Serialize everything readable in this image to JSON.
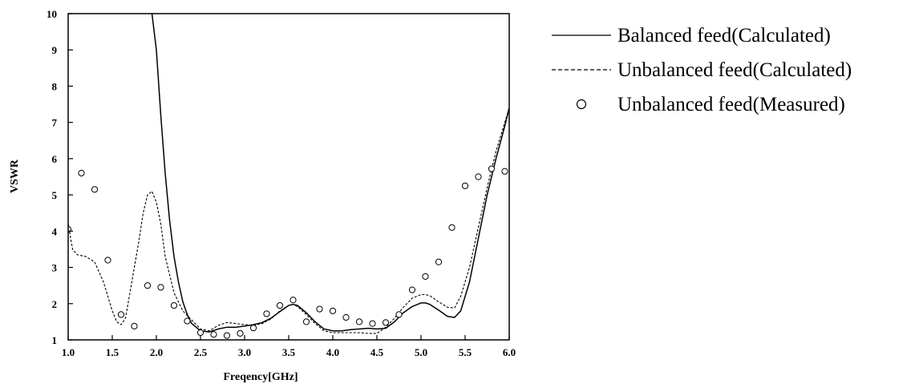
{
  "chart_data": {
    "type": "line",
    "title": "",
    "xlabel": "Freqency[GHz]",
    "ylabel": "VSWR",
    "xlim": [
      1.0,
      6.0
    ],
    "ylim": [
      1,
      10
    ],
    "x_ticks": [
      "1.0",
      "1.5",
      "2.0",
      "2.5",
      "3.0",
      "3.5",
      "4.0",
      "4.5",
      "5.0",
      "5.5",
      "6.0"
    ],
    "y_ticks": [
      "1",
      "2",
      "3",
      "4",
      "5",
      "6",
      "7",
      "8",
      "9",
      "10"
    ],
    "grid": false,
    "legend_position": "right",
    "series": [
      {
        "name": "Balanced feed(Calculated)",
        "style": "solid",
        "color": "#000000",
        "points": [
          [
            1.95,
            10.0
          ],
          [
            2.0,
            9.0
          ],
          [
            2.05,
            7.2
          ],
          [
            2.1,
            5.6
          ],
          [
            2.15,
            4.3
          ],
          [
            2.2,
            3.3
          ],
          [
            2.25,
            2.6
          ],
          [
            2.3,
            2.05
          ],
          [
            2.35,
            1.7
          ],
          [
            2.4,
            1.45
          ],
          [
            2.5,
            1.25
          ],
          [
            2.6,
            1.22
          ],
          [
            2.7,
            1.3
          ],
          [
            2.8,
            1.35
          ],
          [
            2.9,
            1.35
          ],
          [
            3.0,
            1.38
          ],
          [
            3.1,
            1.42
          ],
          [
            3.2,
            1.48
          ],
          [
            3.3,
            1.6
          ],
          [
            3.4,
            1.78
          ],
          [
            3.5,
            1.95
          ],
          [
            3.55,
            1.98
          ],
          [
            3.6,
            1.95
          ],
          [
            3.7,
            1.75
          ],
          [
            3.8,
            1.5
          ],
          [
            3.9,
            1.3
          ],
          [
            4.0,
            1.25
          ],
          [
            4.1,
            1.25
          ],
          [
            4.2,
            1.28
          ],
          [
            4.3,
            1.3
          ],
          [
            4.4,
            1.32
          ],
          [
            4.5,
            1.3
          ],
          [
            4.6,
            1.32
          ],
          [
            4.7,
            1.5
          ],
          [
            4.8,
            1.75
          ],
          [
            4.9,
            1.92
          ],
          [
            5.0,
            2.02
          ],
          [
            5.05,
            2.02
          ],
          [
            5.1,
            1.98
          ],
          [
            5.2,
            1.82
          ],
          [
            5.3,
            1.65
          ],
          [
            5.38,
            1.62
          ],
          [
            5.45,
            1.8
          ],
          [
            5.55,
            2.6
          ],
          [
            5.65,
            3.8
          ],
          [
            5.75,
            5.0
          ],
          [
            5.85,
            6.0
          ],
          [
            5.95,
            6.9
          ],
          [
            6.0,
            7.4
          ]
        ]
      },
      {
        "name": "Unbalanced feed(Calculated)",
        "style": "dashed",
        "color": "#000000",
        "points": [
          [
            1.0,
            4.2
          ],
          [
            1.05,
            3.5
          ],
          [
            1.1,
            3.35
          ],
          [
            1.2,
            3.3
          ],
          [
            1.3,
            3.15
          ],
          [
            1.4,
            2.6
          ],
          [
            1.5,
            1.8
          ],
          [
            1.55,
            1.5
          ],
          [
            1.6,
            1.42
          ],
          [
            1.65,
            1.6
          ],
          [
            1.7,
            2.3
          ],
          [
            1.8,
            3.7
          ],
          [
            1.85,
            4.5
          ],
          [
            1.9,
            5.0
          ],
          [
            1.95,
            5.1
          ],
          [
            2.0,
            4.8
          ],
          [
            2.05,
            4.2
          ],
          [
            2.1,
            3.3
          ],
          [
            2.2,
            2.3
          ],
          [
            2.3,
            1.8
          ],
          [
            2.4,
            1.55
          ],
          [
            2.5,
            1.3
          ],
          [
            2.6,
            1.25
          ],
          [
            2.7,
            1.4
          ],
          [
            2.8,
            1.48
          ],
          [
            2.9,
            1.45
          ],
          [
            3.0,
            1.42
          ],
          [
            3.1,
            1.4
          ],
          [
            3.2,
            1.45
          ],
          [
            3.3,
            1.58
          ],
          [
            3.4,
            1.8
          ],
          [
            3.5,
            1.95
          ],
          [
            3.55,
            1.98
          ],
          [
            3.6,
            1.92
          ],
          [
            3.7,
            1.7
          ],
          [
            3.8,
            1.45
          ],
          [
            3.9,
            1.25
          ],
          [
            4.0,
            1.2
          ],
          [
            4.1,
            1.2
          ],
          [
            4.2,
            1.2
          ],
          [
            4.3,
            1.2
          ],
          [
            4.4,
            1.18
          ],
          [
            4.5,
            1.18
          ],
          [
            4.6,
            1.35
          ],
          [
            4.7,
            1.6
          ],
          [
            4.8,
            1.9
          ],
          [
            4.9,
            2.15
          ],
          [
            5.0,
            2.25
          ],
          [
            5.05,
            2.25
          ],
          [
            5.1,
            2.22
          ],
          [
            5.2,
            2.05
          ],
          [
            5.3,
            1.9
          ],
          [
            5.38,
            1.88
          ],
          [
            5.45,
            2.2
          ],
          [
            5.55,
            3.0
          ],
          [
            5.65,
            4.1
          ],
          [
            5.75,
            5.2
          ],
          [
            5.85,
            6.2
          ],
          [
            5.95,
            7.0
          ],
          [
            6.0,
            7.4
          ]
        ]
      },
      {
        "name": "Unbalanced feed(Measured)",
        "style": "markers",
        "marker": "open-circle",
        "color": "#000000",
        "points": [
          [
            1.0,
            4.05
          ],
          [
            1.15,
            5.6
          ],
          [
            1.3,
            5.15
          ],
          [
            1.45,
            3.2
          ],
          [
            1.6,
            1.7
          ],
          [
            1.75,
            1.38
          ],
          [
            1.9,
            2.5
          ],
          [
            2.05,
            2.45
          ],
          [
            2.2,
            1.95
          ],
          [
            2.35,
            1.52
          ],
          [
            2.5,
            1.2
          ],
          [
            2.65,
            1.15
          ],
          [
            2.8,
            1.12
          ],
          [
            2.95,
            1.18
          ],
          [
            3.1,
            1.33
          ],
          [
            3.25,
            1.72
          ],
          [
            3.4,
            1.95
          ],
          [
            3.55,
            2.1
          ],
          [
            3.7,
            1.5
          ],
          [
            3.85,
            1.85
          ],
          [
            4.0,
            1.8
          ],
          [
            4.15,
            1.62
          ],
          [
            4.3,
            1.5
          ],
          [
            4.45,
            1.45
          ],
          [
            4.6,
            1.48
          ],
          [
            4.75,
            1.7
          ],
          [
            4.9,
            2.38
          ],
          [
            5.05,
            2.75
          ],
          [
            5.2,
            3.15
          ],
          [
            5.35,
            4.1
          ],
          [
            5.5,
            5.25
          ],
          [
            5.65,
            5.5
          ],
          [
            5.8,
            5.72
          ],
          [
            5.95,
            5.65
          ]
        ]
      }
    ]
  }
}
